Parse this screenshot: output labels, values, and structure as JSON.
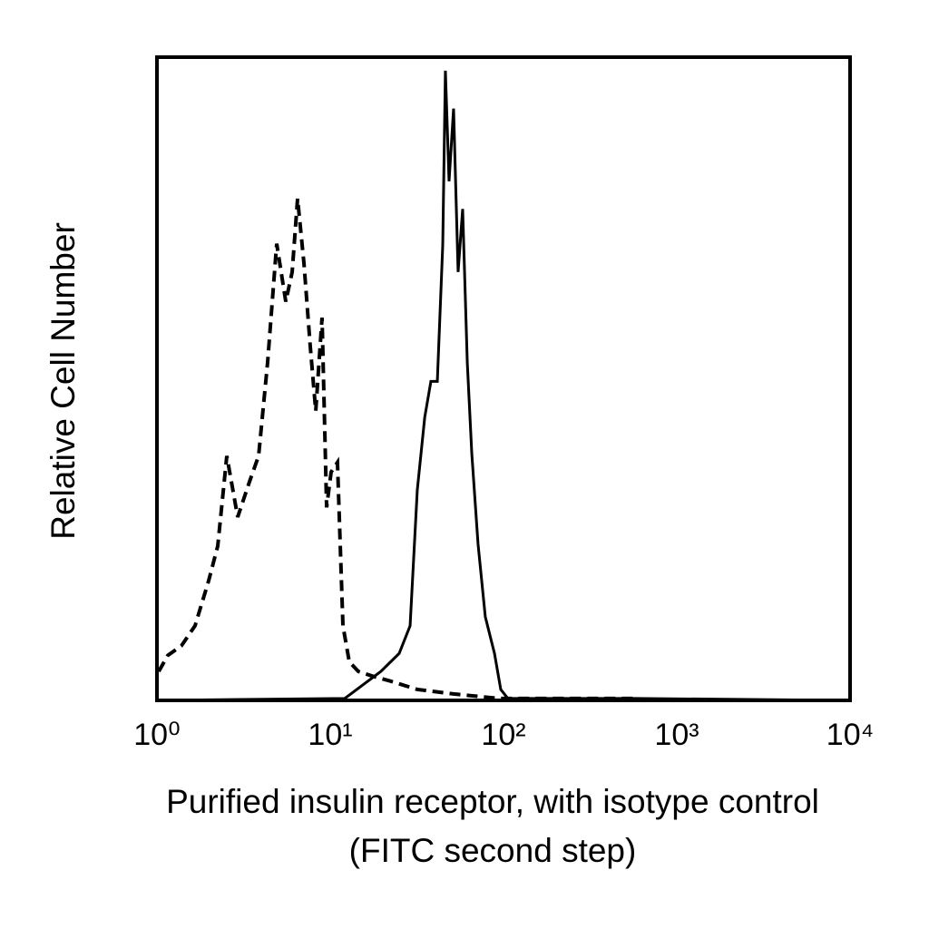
{
  "chart_data": {
    "type": "line",
    "xlabel": [
      "Purified insulin receptor, with isotype control",
      "(FITC second step)"
    ],
    "ylabel": "Relative Cell Number",
    "log_x": true,
    "xlim": [
      1,
      10000
    ],
    "ylim": [
      0,
      100
    ],
    "xticks": [
      {
        "value": 1,
        "label": "10⁰"
      },
      {
        "value": 10,
        "label": "10¹"
      },
      {
        "value": 100,
        "label": "10²"
      },
      {
        "value": 1000,
        "label": "10³"
      },
      {
        "value": 10000,
        "label": "10⁴"
      }
    ],
    "series": [
      {
        "color": "#000000",
        "dashed": true,
        "x": [
          1.024,
          1.156,
          1.385,
          1.659,
          1.988,
          2.243,
          2.53,
          2.924,
          3.42,
          3.86,
          4.35,
          4.91,
          5.54,
          6.03,
          6.48,
          7.05,
          7.67,
          8.25,
          8.97,
          9.53,
          10.12,
          11.01,
          11.84,
          12.88,
          14.53,
          17.4,
          22.2,
          31.8,
          51.5,
          94.1,
          172,
          574
        ],
        "values": [
          4.5,
          7,
          8.5,
          11.6,
          18.6,
          24,
          38,
          28.5,
          34,
          38,
          52.5,
          71,
          62,
          66.6,
          78,
          68,
          55,
          45,
          59.5,
          30,
          35.5,
          37,
          11.6,
          6,
          4.5,
          3.8,
          3,
          1.7,
          1,
          0.3,
          0.3,
          0.3
        ]
      },
      {
        "color": "#000000",
        "dashed": false,
        "x": [
          1.024,
          12.13,
          19.6,
          25.0,
          28.9,
          31.8,
          35.1,
          38.1,
          41.5,
          44.6,
          46.2,
          48.5,
          51.5,
          54.7,
          58.1,
          61.8,
          65.6,
          71.3,
          78.5,
          88.7,
          96.4,
          106,
          574,
          9770
        ],
        "values": [
          0,
          0.3,
          4.5,
          7.3,
          11.6,
          32.7,
          44,
          49.6,
          49.6,
          70.8,
          97.9,
          80.7,
          92,
          66.6,
          76.4,
          52.5,
          38.4,
          24.3,
          13,
          7.3,
          1.7,
          0.3,
          0.3,
          0
        ]
      }
    ]
  }
}
